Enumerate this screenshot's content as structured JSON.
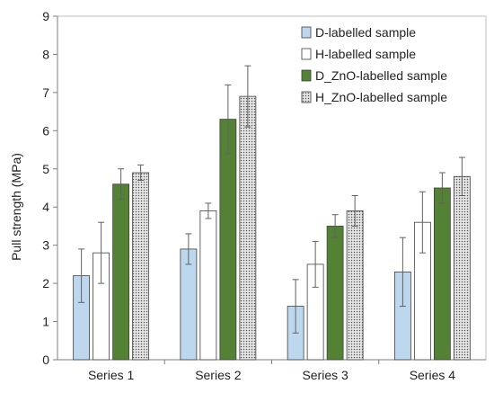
{
  "chart_data": {
    "type": "bar",
    "title": "",
    "xlabel": "",
    "ylabel": "Pull strength (MPa)",
    "ylim": [
      0,
      9
    ],
    "yticks": [
      "0",
      "1",
      "2",
      "3",
      "4",
      "5",
      "6",
      "7",
      "8",
      "9"
    ],
    "categories": [
      "Series 1",
      "Series 2",
      "Series 3",
      "Series 4"
    ],
    "grid": false,
    "legend_position": "top-right",
    "series": [
      {
        "name": "D-labelled sample",
        "fill": "#bdd7ee",
        "pattern": "solid",
        "values": [
          2.2,
          2.9,
          1.4,
          2.3
        ],
        "error": [
          0.7,
          0.4,
          0.7,
          0.9
        ]
      },
      {
        "name": "H-labelled sample",
        "fill": "#ffffff",
        "pattern": "solid",
        "values": [
          2.8,
          3.9,
          2.5,
          3.6
        ],
        "error": [
          0.8,
          0.2,
          0.6,
          0.8
        ]
      },
      {
        "name": "D_ZnO-labelled sample",
        "fill": "#548235",
        "pattern": "solid",
        "values": [
          4.6,
          6.3,
          3.5,
          4.5
        ],
        "error": [
          0.4,
          0.9,
          0.3,
          0.4
        ]
      },
      {
        "name": "H_ZnO-labelled sample",
        "fill": "#e7e6e6",
        "pattern": "dots",
        "values": [
          4.9,
          6.9,
          3.9,
          4.8
        ],
        "error": [
          0.2,
          0.8,
          0.4,
          0.5
        ]
      }
    ]
  }
}
